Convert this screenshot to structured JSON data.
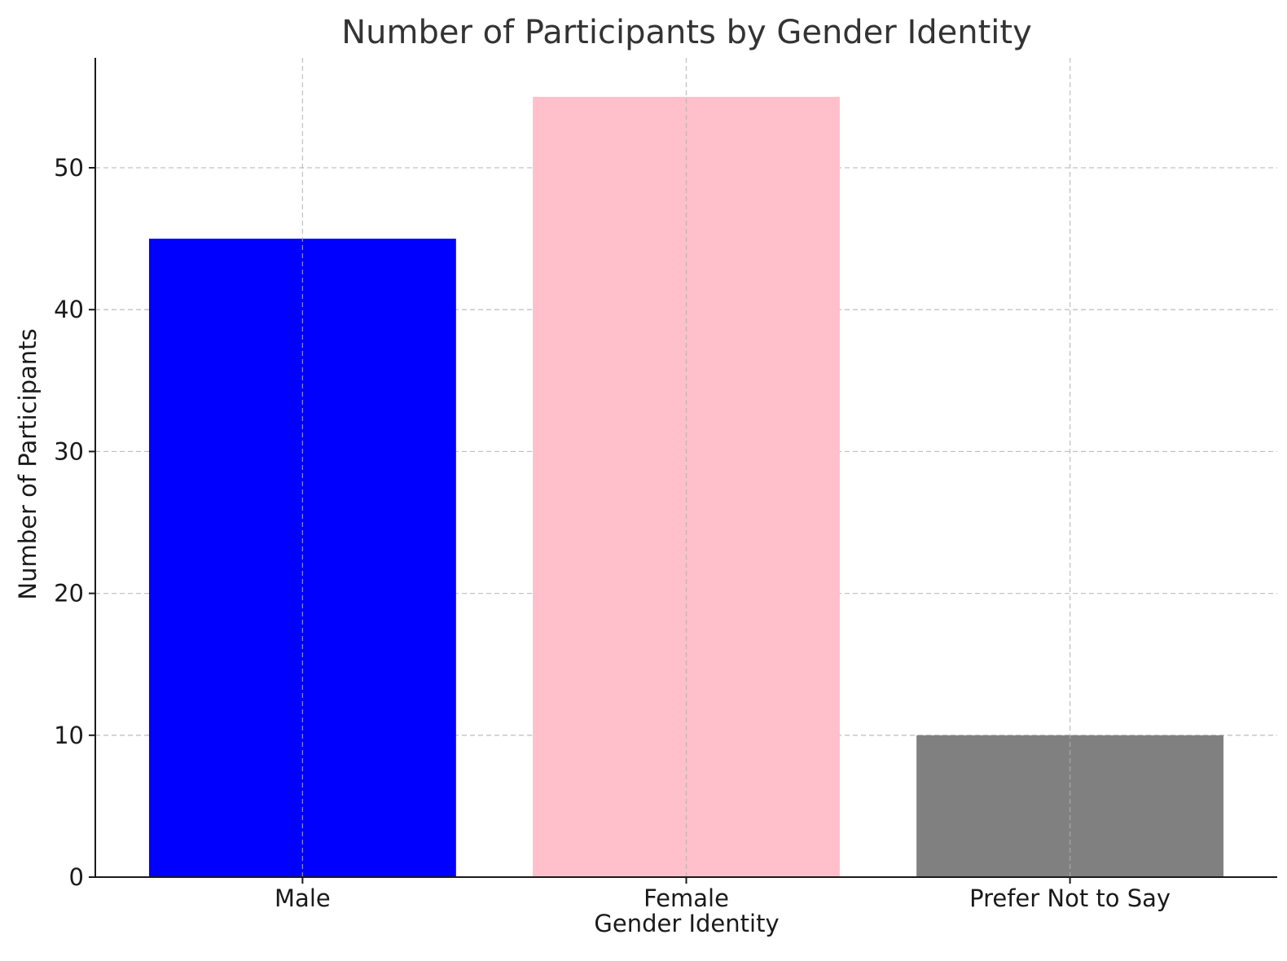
{
  "chart_data": {
    "type": "bar",
    "title": "Number of Participants by Gender Identity",
    "xlabel": "Gender Identity",
    "ylabel": "Number of Participants",
    "categories": [
      "Male",
      "Female",
      "Prefer Not to Say"
    ],
    "values": [
      45,
      55,
      10
    ],
    "colors": [
      "#0000ff",
      "#ffc0cb",
      "#808080"
    ],
    "ylim": [
      0,
      57.75
    ],
    "yticks": [
      0,
      10,
      20,
      30,
      40,
      50
    ],
    "grid": true
  }
}
